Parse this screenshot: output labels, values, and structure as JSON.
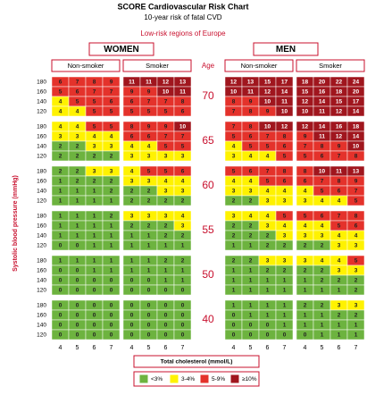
{
  "header": {
    "title": "SCORE Cardiovascular Risk Chart",
    "subtitle": "10-year risk of fatal CVD",
    "region": "Low-risk regions of Europe"
  },
  "age_label": "Age",
  "sbp_label": "Systolic blood pressure (mmHg)",
  "sbp_levels": [
    180,
    160,
    140,
    120
  ],
  "cholesterol_levels": [
    4,
    5,
    6,
    7
  ],
  "cholesterol_label": "Total cholesterol (mmol/L)",
  "ages": [
    70,
    65,
    60,
    55,
    50,
    40
  ],
  "sexes": [
    {
      "label": "WOMEN",
      "groups": [
        {
          "label": "Non-smoker",
          "blocks": [
            [
              [
                6,
                7,
                8,
                9
              ],
              [
                5,
                6,
                7,
                7
              ],
              [
                4,
                5,
                5,
                6
              ],
              [
                4,
                4,
                5,
                5
              ]
            ],
            [
              [
                4,
                4,
                5,
                5
              ],
              [
                3,
                3,
                4,
                4
              ],
              [
                2,
                2,
                3,
                3
              ],
              [
                2,
                2,
                2,
                2
              ]
            ],
            [
              [
                2,
                2,
                3,
                3
              ],
              [
                1,
                2,
                2,
                2
              ],
              [
                1,
                1,
                1,
                2
              ],
              [
                1,
                1,
                1,
                1
              ]
            ],
            [
              [
                1,
                1,
                1,
                2
              ],
              [
                1,
                1,
                1,
                1
              ],
              [
                1,
                1,
                1,
                1
              ],
              [
                0,
                0,
                1,
                1
              ]
            ],
            [
              [
                1,
                1,
                1,
                1
              ],
              [
                0,
                0,
                1,
                1
              ],
              [
                0,
                0,
                0,
                0
              ],
              [
                0,
                0,
                0,
                0
              ]
            ],
            [
              [
                0,
                0,
                0,
                0
              ],
              [
                0,
                0,
                0,
                0
              ],
              [
                0,
                0,
                0,
                0
              ],
              [
                0,
                0,
                0,
                0
              ]
            ]
          ]
        },
        {
          "label": "Smoker",
          "blocks": [
            [
              [
                11,
                11,
                12,
                13
              ],
              [
                9,
                9,
                10,
                11
              ],
              [
                6,
                7,
                7,
                8
              ],
              [
                5,
                5,
                5,
                6
              ]
            ],
            [
              [
                8,
                9,
                9,
                10
              ],
              [
                6,
                6,
                7,
                7
              ],
              [
                4,
                4,
                5,
                5
              ],
              [
                3,
                3,
                3,
                3
              ]
            ],
            [
              [
                4,
                5,
                5,
                6
              ],
              [
                3,
                3,
                4,
                4
              ],
              [
                2,
                2,
                3,
                3
              ],
              [
                2,
                2,
                2,
                2
              ]
            ],
            [
              [
                3,
                3,
                3,
                4
              ],
              [
                2,
                2,
                2,
                3
              ],
              [
                1,
                1,
                2,
                2
              ],
              [
                1,
                1,
                1,
                1
              ]
            ],
            [
              [
                1,
                1,
                2,
                2
              ],
              [
                1,
                1,
                1,
                1
              ],
              [
                0,
                0,
                1,
                1
              ],
              [
                0,
                0,
                0,
                0
              ]
            ],
            [
              [
                0,
                0,
                0,
                0
              ],
              [
                0,
                0,
                0,
                0
              ],
              [
                0,
                0,
                0,
                0
              ],
              [
                0,
                0,
                0,
                0
              ]
            ]
          ]
        }
      ]
    },
    {
      "label": "MEN",
      "groups": [
        {
          "label": "Non-smoker",
          "blocks": [
            [
              [
                12,
                13,
                15,
                17
              ],
              [
                10,
                11,
                12,
                14
              ],
              [
                8,
                9,
                10,
                11
              ],
              [
                7,
                8,
                9,
                10
              ]
            ],
            [
              [
                7,
                8,
                10,
                12
              ],
              [
                5,
                6,
                7,
                8
              ],
              [
                4,
                5,
                5,
                6
              ],
              [
                3,
                4,
                4,
                5
              ]
            ],
            [
              [
                5,
                6,
                7,
                8
              ],
              [
                4,
                4,
                5,
                6
              ],
              [
                3,
                3,
                4,
                4
              ],
              [
                2,
                2,
                3,
                3
              ]
            ],
            [
              [
                3,
                4,
                4,
                5
              ],
              [
                2,
                2,
                3,
                4
              ],
              [
                2,
                2,
                2,
                3
              ],
              [
                1,
                1,
                2,
                2
              ]
            ],
            [
              [
                2,
                2,
                3,
                3
              ],
              [
                1,
                1,
                2,
                2
              ],
              [
                1,
                1,
                1,
                1
              ],
              [
                1,
                1,
                1,
                1
              ]
            ],
            [
              [
                1,
                1,
                1,
                1
              ],
              [
                0,
                1,
                1,
                1
              ],
              [
                0,
                0,
                0,
                1
              ],
              [
                0,
                0,
                0,
                0
              ]
            ]
          ]
        },
        {
          "label": "Smoker",
          "blocks": [
            [
              [
                18,
                20,
                22,
                24
              ],
              [
                15,
                16,
                18,
                20
              ],
              [
                12,
                14,
                15,
                17
              ],
              [
                10,
                11,
                12,
                14
              ]
            ],
            [
              [
                12,
                14,
                16,
                18
              ],
              [
                9,
                11,
                12,
                14
              ],
              [
                7,
                8,
                9,
                10
              ],
              [
                5,
                6,
                7,
                8
              ]
            ],
            [
              [
                8,
                10,
                11,
                13
              ],
              [
                6,
                7,
                8,
                9
              ],
              [
                4,
                5,
                6,
                7
              ],
              [
                3,
                4,
                4,
                5
              ]
            ],
            [
              [
                5,
                6,
                7,
                8
              ],
              [
                4,
                4,
                5,
                6
              ],
              [
                3,
                3,
                4,
                4
              ],
              [
                2,
                2,
                3,
                3
              ]
            ],
            [
              [
                3,
                4,
                4,
                5
              ],
              [
                2,
                2,
                3,
                3
              ],
              [
                1,
                2,
                2,
                2
              ],
              [
                1,
                1,
                1,
                2
              ]
            ],
            [
              [
                2,
                2,
                3,
                3
              ],
              [
                1,
                1,
                2,
                2
              ],
              [
                1,
                1,
                1,
                1
              ],
              [
                0,
                1,
                1,
                1
              ]
            ]
          ]
        }
      ]
    }
  ],
  "legend": [
    {
      "label": "<3%",
      "color": "#6db33f"
    },
    {
      "label": "3-4%",
      "color": "#fff200"
    },
    {
      "label": "5-9%",
      "color": "#e4322b"
    },
    {
      "label": "≥10%",
      "color": "#a0161e"
    }
  ]
}
